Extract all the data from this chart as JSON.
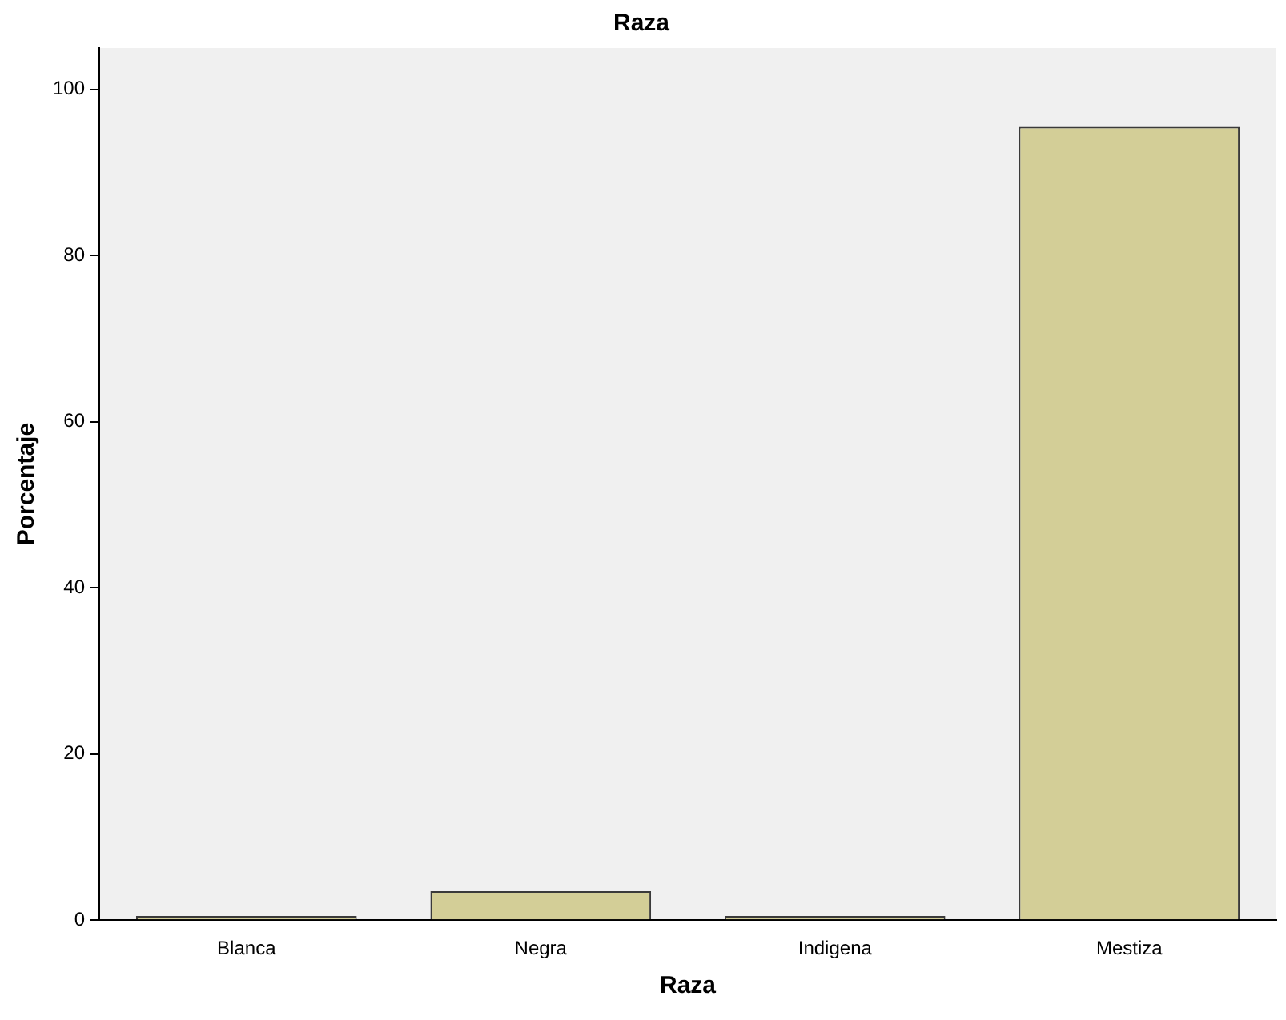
{
  "chart_data": {
    "type": "bar",
    "title": "Raza",
    "xlabel": "Raza",
    "ylabel": "Porcentaje",
    "categories": [
      "Blanca",
      "Negra",
      "Indigena",
      "Mestiza"
    ],
    "values": [
      0.5,
      3.5,
      0.5,
      95.5
    ],
    "color": "#d3ce97",
    "ylim": [
      0,
      105
    ],
    "yticks": [
      0,
      20,
      40,
      60,
      80,
      100
    ],
    "grid": false,
    "legend": false
  }
}
